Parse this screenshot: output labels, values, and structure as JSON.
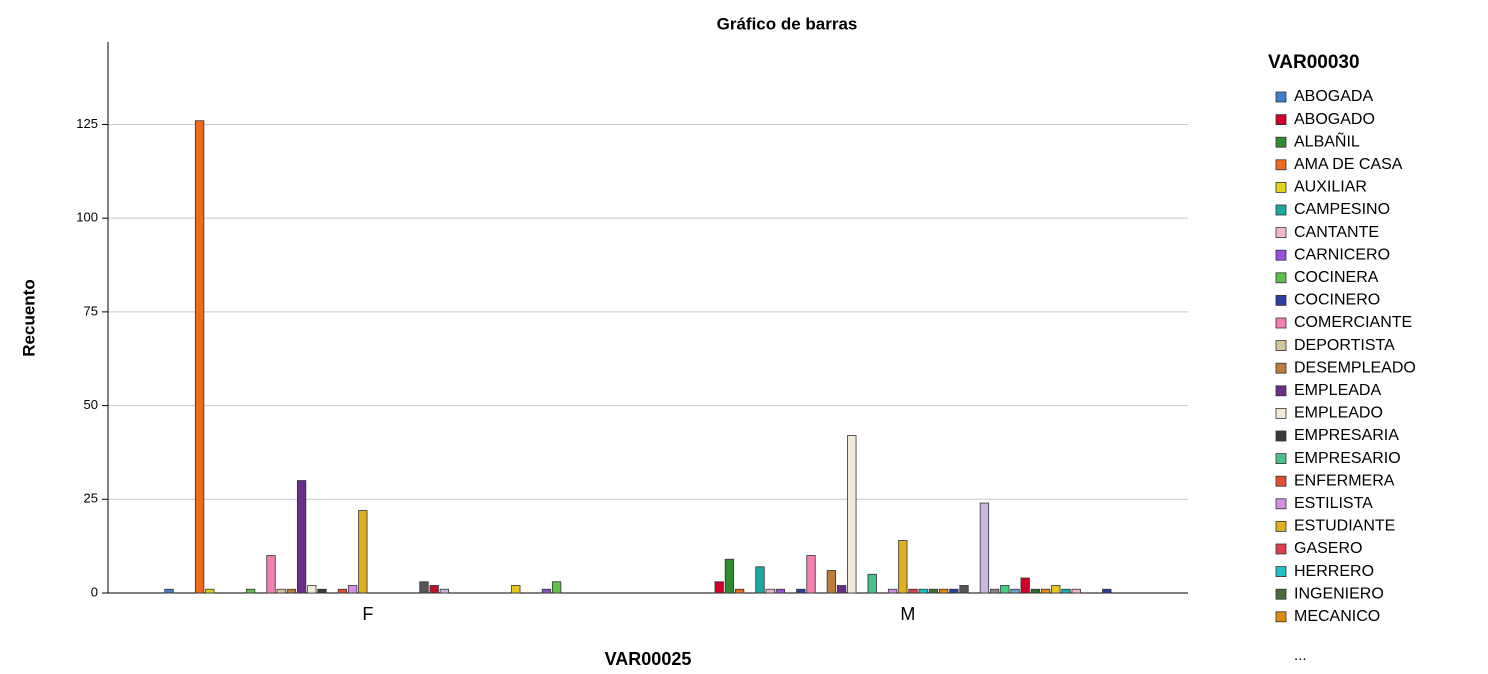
{
  "chart_data": {
    "type": "bar",
    "title": "Gráfico de barras",
    "x_label": "VAR00025",
    "y_label": "Recuento",
    "categories": [
      "F",
      "M"
    ],
    "legend_title": "VAR00030",
    "legend_more": "...",
    "ylim": [
      0,
      147
    ],
    "yticks": [
      0,
      25,
      50,
      75,
      100,
      125
    ],
    "grid": true,
    "series": [
      {
        "name": "ABOGADA",
        "color": "#3f7fcf",
        "values": [
          1,
          0
        ]
      },
      {
        "name": "ABOGADO",
        "color": "#d0002a",
        "values": [
          0,
          3
        ]
      },
      {
        "name": "ALBAÑIL",
        "color": "#2e8b2e",
        "values": [
          0,
          9
        ]
      },
      {
        "name": "AMA DE CASA",
        "color": "#f06a1e",
        "values": [
          126,
          1
        ]
      },
      {
        "name": "AUXILIAR",
        "color": "#e6d21a",
        "values": [
          1,
          0
        ]
      },
      {
        "name": "CAMPESINO",
        "color": "#1aa8a0",
        "values": [
          0,
          7
        ]
      },
      {
        "name": "CANTANTE",
        "color": "#f6b8d0",
        "values": [
          0,
          1
        ]
      },
      {
        "name": "CARNICERO",
        "color": "#9b4fe0",
        "values": [
          0,
          1
        ]
      },
      {
        "name": "COCINERA",
        "color": "#5cc24a",
        "values": [
          1,
          0
        ]
      },
      {
        "name": "COCINERO",
        "color": "#2a3f9f",
        "values": [
          0,
          1
        ]
      },
      {
        "name": "COMERCIANTE",
        "color": "#f280b0",
        "values": [
          10,
          10
        ]
      },
      {
        "name": "DEPORTISTA",
        "color": "#d4c89a",
        "values": [
          1,
          0
        ]
      },
      {
        "name": "DESEMPLEADO",
        "color": "#c07a3a",
        "values": [
          1,
          6
        ]
      },
      {
        "name": "EMPLEADA",
        "color": "#6a2e8a",
        "values": [
          30,
          2
        ]
      },
      {
        "name": "EMPLEADO",
        "color": "#f2ead8",
        "values": [
          2,
          42
        ]
      },
      {
        "name": "EMPRESARIA",
        "color": "#3a3a3a",
        "values": [
          1,
          0
        ]
      },
      {
        "name": "EMPRESARIO",
        "color": "#4cc08a",
        "values": [
          0,
          5
        ]
      },
      {
        "name": "ENFERMERA",
        "color": "#e0502e",
        "values": [
          1,
          0
        ]
      },
      {
        "name": "ESTILISTA",
        "color": "#d48ee8",
        "values": [
          2,
          1
        ]
      },
      {
        "name": "ESTUDIANTE",
        "color": "#e0b020",
        "values": [
          22,
          14
        ]
      },
      {
        "name": "GASERO",
        "color": "#e0404a",
        "values": [
          0,
          1
        ]
      },
      {
        "name": "HERRERO",
        "color": "#20c0c8",
        "values": [
          0,
          1
        ]
      },
      {
        "name": "INGENIERO",
        "color": "#4a6a3a",
        "values": [
          0,
          1
        ]
      },
      {
        "name": "MECANICO",
        "color": "#e08a10",
        "values": [
          0,
          1
        ]
      },
      {
        "color": "#2a3f9f",
        "values": [
          0,
          1
        ]
      },
      {
        "color": "#555555",
        "values": [
          3,
          2
        ]
      },
      {
        "color": "#c0102a",
        "values": [
          2,
          0
        ]
      },
      {
        "color": "#c9b8e0",
        "values": [
          1,
          24
        ]
      },
      {
        "color": "#8a8a8a",
        "values": [
          0,
          1
        ]
      },
      {
        "color": "#40d080",
        "values": [
          0,
          2
        ]
      },
      {
        "color": "#6aa0d8",
        "values": [
          0,
          1
        ]
      },
      {
        "color": "#d0002a",
        "values": [
          0,
          4
        ]
      },
      {
        "color": "#2e6b2e",
        "values": [
          0,
          1
        ]
      },
      {
        "color": "#f08a20",
        "values": [
          0,
          1
        ]
      },
      {
        "color": "#e6c81a",
        "values": [
          2,
          2
        ]
      },
      {
        "color": "#1ab0b8",
        "values": [
          0,
          1
        ]
      },
      {
        "color": "#f6b0c8",
        "values": [
          0,
          1
        ]
      },
      {
        "color": "#8a4fd0",
        "values": [
          1,
          0
        ]
      },
      {
        "color": "#5cc24a",
        "values": [
          3,
          0
        ]
      },
      {
        "color": "#2a3f9f",
        "values": [
          0,
          1
        ]
      }
    ]
  }
}
